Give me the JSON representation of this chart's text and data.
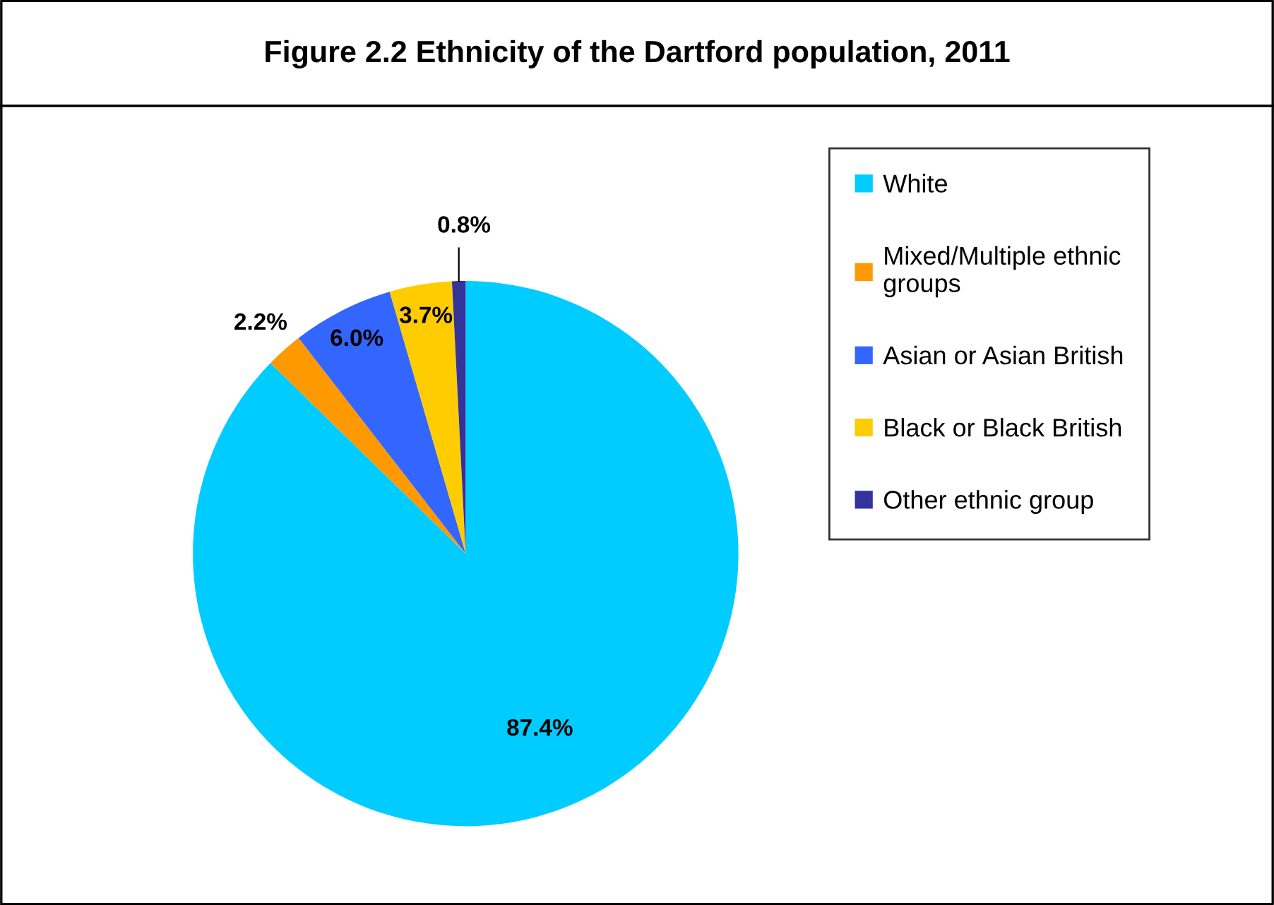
{
  "chart_data": {
    "type": "pie",
    "title": "Figure 2.2 Ethnicity of the Dartford population, 2011",
    "categories": [
      "White",
      "Mixed/Multiple ethnic\ngroups",
      "Asian or Asian British",
      "Black or Black British",
      "Other ethnic group"
    ],
    "values": [
      87.4,
      2.2,
      6.0,
      3.7,
      0.8
    ],
    "colors": [
      "#00ccff",
      "#ff9900",
      "#3366ff",
      "#ffcc00",
      "#333399"
    ],
    "value_labels": [
      "87.4%",
      "2.2%",
      "6.0%",
      "3.7%",
      "0.8%"
    ],
    "legend": "right"
  }
}
